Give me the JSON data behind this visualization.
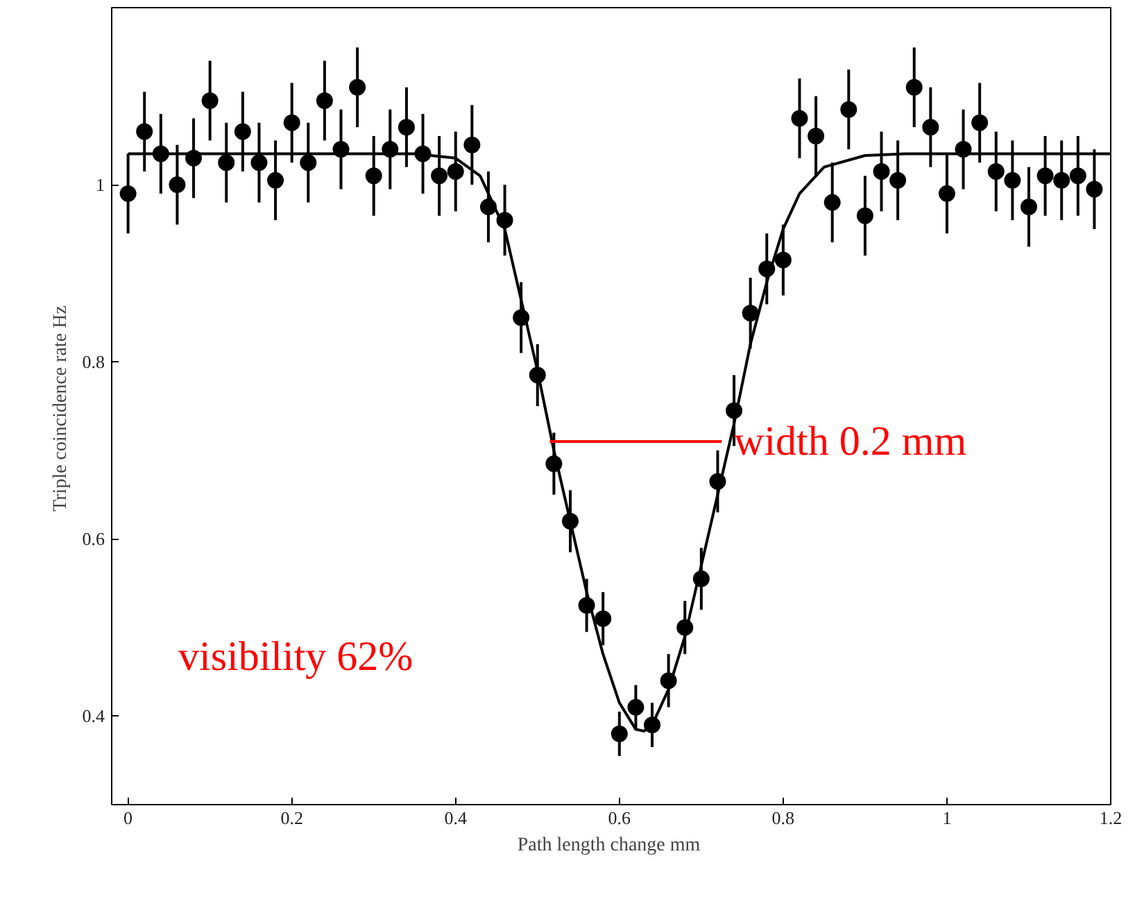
{
  "chart_data": {
    "type": "scatter",
    "xlabel": "Path length change  mm",
    "ylabel": "Triple coincidence rate  Hz",
    "xlim": [
      -0.02,
      1.2
    ],
    "ylim": [
      0.3,
      1.2
    ],
    "xticks": [
      0,
      0.2,
      0.4,
      0.6,
      0.8,
      1,
      1.2
    ],
    "yticks": [
      0.4,
      0.6,
      0.8,
      1
    ],
    "grid": false,
    "marker": "circle",
    "annotations": [
      {
        "text": "width 0.2 mm",
        "x": 0.74,
        "y": 0.71
      },
      "visibility 62%"
    ],
    "series": [
      {
        "color": "#000000",
        "x": [
          0,
          0.02,
          0.04,
          0.06,
          0.08,
          0.1,
          0.12,
          0.14,
          0.16,
          0.18,
          0.2,
          0.22,
          0.24,
          0.26,
          0.28,
          0.3,
          0.32,
          0.34,
          0.36,
          0.38,
          0.4,
          0.42,
          0.44,
          0.46,
          0.48,
          0.5,
          0.52,
          0.54,
          0.56,
          0.58,
          0.6,
          0.62,
          0.64,
          0.66,
          0.68,
          0.7,
          0.72,
          0.74,
          0.76,
          0.78,
          0.8,
          0.82,
          0.84,
          0.86,
          0.88,
          0.9,
          0.92,
          0.94,
          0.96,
          0.98,
          1,
          1.02,
          1.04,
          1.06,
          1.08,
          1.1,
          1.12,
          1.14,
          1.16,
          1.18
        ],
        "values": [
          0.99,
          1.06,
          1.035,
          1.0,
          1.03,
          1.095,
          1.025,
          1.06,
          1.025,
          1.005,
          1.07,
          1.025,
          1.095,
          1.04,
          1.11,
          1.01,
          1.04,
          1.065,
          1.035,
          1.01,
          1.015,
          1.045,
          0.975,
          0.96,
          0.85,
          0.785,
          0.685,
          0.62,
          0.525,
          0.51,
          0.38,
          0.41,
          0.39,
          0.44,
          0.5,
          0.555,
          0.665,
          0.745,
          0.855,
          0.905,
          0.915,
          1.075,
          1.055,
          0.98,
          1.085,
          0.965,
          1.015,
          1.005,
          1.11,
          1.065,
          0.99,
          1.04,
          1.07,
          1.015,
          1.005,
          0.975,
          1.01,
          1.005,
          1.01,
          0.995
        ],
        "errors": [
          0.045,
          0.045,
          0.045,
          0.045,
          0.045,
          0.045,
          0.045,
          0.045,
          0.045,
          0.045,
          0.045,
          0.045,
          0.045,
          0.045,
          0.045,
          0.045,
          0.045,
          0.045,
          0.045,
          0.045,
          0.045,
          0.045,
          0.04,
          0.04,
          0.04,
          0.035,
          0.035,
          0.035,
          0.03,
          0.03,
          0.025,
          0.025,
          0.025,
          0.03,
          0.03,
          0.035,
          0.035,
          0.04,
          0.04,
          0.04,
          0.04,
          0.045,
          0.045,
          0.045,
          0.045,
          0.045,
          0.045,
          0.045,
          0.045,
          0.045,
          0.045,
          0.045,
          0.045,
          0.045,
          0.045,
          0.045,
          0.045,
          0.045,
          0.045,
          0.045
        ]
      },
      {
        "type": "line",
        "color": "#000000",
        "marker": "none",
        "x": [
          0,
          0.35,
          0.4,
          0.43,
          0.46,
          0.48,
          0.5,
          0.52,
          0.54,
          0.56,
          0.58,
          0.6,
          0.62,
          0.63,
          0.64,
          0.66,
          0.68,
          0.7,
          0.72,
          0.74,
          0.76,
          0.78,
          0.8,
          0.82,
          0.85,
          0.9,
          0.95,
          1.2
        ],
        "values": [
          1.035,
          1.035,
          1.03,
          1.01,
          0.95,
          0.87,
          0.79,
          0.7,
          0.62,
          0.54,
          0.47,
          0.415,
          0.385,
          0.383,
          0.39,
          0.43,
          0.49,
          0.57,
          0.65,
          0.73,
          0.82,
          0.89,
          0.95,
          0.99,
          1.02,
          1.033,
          1.035,
          1.035
        ]
      },
      {
        "type": "line",
        "color": "#ff0000",
        "marker": "none",
        "x": [
          0.515,
          0.725
        ],
        "values": [
          0.71,
          0.71
        ]
      }
    ]
  }
}
